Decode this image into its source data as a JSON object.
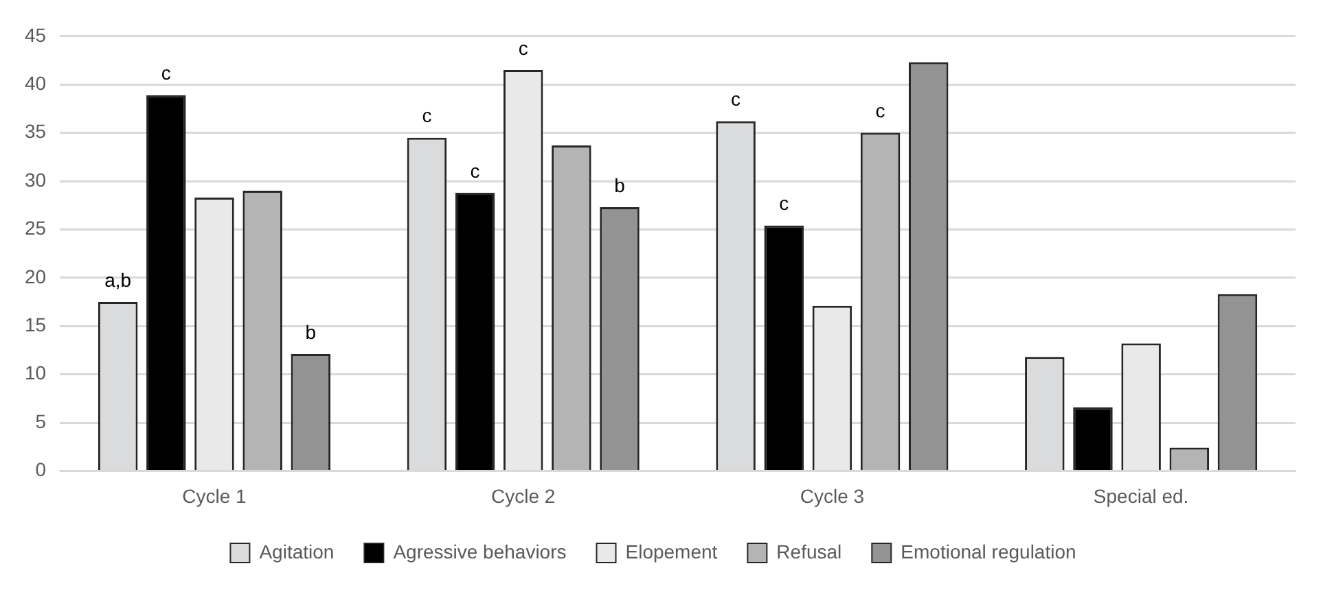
{
  "chart_data": {
    "type": "bar",
    "categories": [
      "Cycle 1",
      "Cycle 2",
      "Cycle 3",
      "Special ed."
    ],
    "series": [
      {
        "name": "Agitation",
        "color": "#dadbdc",
        "values": [
          17.5,
          34.5,
          36.2,
          11.8
        ],
        "value_labels": [
          "a,b",
          "c",
          "c",
          null
        ]
      },
      {
        "name": "Agressive behaviors",
        "color": "#000000",
        "values": [
          38.9,
          28.8,
          25.4,
          6.6
        ],
        "value_labels": [
          "c",
          "c",
          "c",
          null
        ]
      },
      {
        "name": "Elopement",
        "color": "#e9e9e9",
        "values": [
          28.3,
          41.5,
          17.1,
          13.2
        ],
        "value_labels": [
          null,
          "c",
          null,
          null
        ]
      },
      {
        "name": "Refusal",
        "color": "#b4b4b4",
        "values": [
          29.0,
          33.7,
          35.0,
          2.4
        ],
        "value_labels": [
          null,
          null,
          "c",
          null
        ]
      },
      {
        "name": "Emotional regulation",
        "color": "#939393",
        "values": [
          12.1,
          27.3,
          42.3,
          18.3
        ],
        "value_labels": [
          "b",
          "b",
          null,
          null
        ]
      }
    ],
    "ylim": [
      0,
      45
    ],
    "yticks": [
      0,
      5,
      10,
      15,
      20,
      25,
      30,
      35,
      40,
      45
    ],
    "grid": "y",
    "legend": "bottom"
  }
}
